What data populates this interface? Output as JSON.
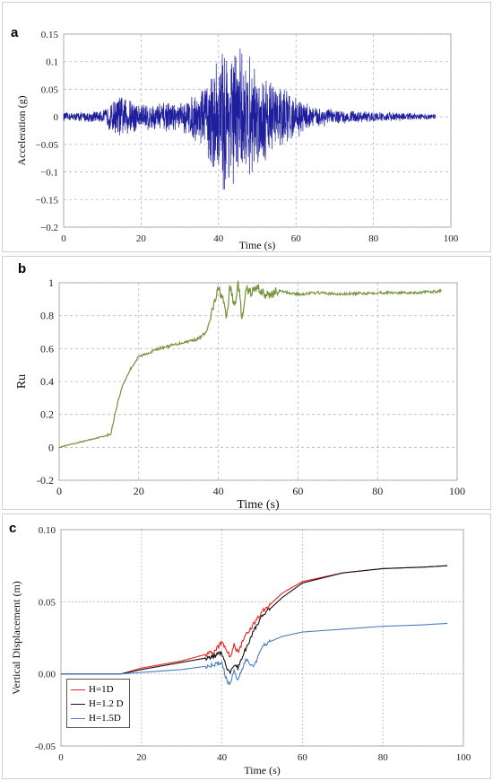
{
  "panels": {
    "a": {
      "letter": "a"
    },
    "b": {
      "letter": "b"
    },
    "c": {
      "letter": "c"
    }
  },
  "chart_data": [
    {
      "id": "a",
      "type": "line",
      "title": "",
      "xlabel": "Time (s)",
      "ylabel": "Acceleration (g)",
      "xlim": [
        0,
        100
      ],
      "ylim": [
        -0.2,
        0.15
      ],
      "xticks": [
        "0",
        "20",
        "40",
        "60",
        "80",
        "100"
      ],
      "yticks": [
        "0.15",
        "0.1",
        "0.05",
        "0",
        "−0.05",
        "−0.1",
        "−0.15",
        "−0.2"
      ],
      "ytick_values": [
        0.15,
        0.1,
        0.05,
        0,
        -0.05,
        -0.1,
        -0.15,
        -0.2
      ],
      "grid": true,
      "series": [
        {
          "color": "#1f1f9e",
          "duration": 96,
          "envelope": {
            "t": [
              0,
              10,
              14,
              20,
              30,
              36,
              40,
              42,
              45,
              50,
              55,
              60,
              65,
              70,
              80,
              90,
              96
            ],
            "amp": [
              0.008,
              0.012,
              0.045,
              0.03,
              0.028,
              0.06,
              0.13,
              0.16,
              0.14,
              0.1,
              0.07,
              0.04,
              0.022,
              0.014,
              0.01,
              0.008,
              0.005
            ]
          }
        }
      ]
    },
    {
      "id": "b",
      "type": "line",
      "title": "",
      "xlabel": "Time (s)",
      "ylabel": "Ru",
      "xlim": [
        0,
        100
      ],
      "ylim": [
        -0.2,
        1.0
      ],
      "xticks": [
        "0",
        "20",
        "40",
        "60",
        "80",
        "100"
      ],
      "yticks": [
        "1",
        "0.8",
        "0.6",
        "0.4",
        "0.2",
        "0",
        "-0.2"
      ],
      "ytick_values": [
        1,
        0.8,
        0.6,
        0.4,
        0.2,
        0,
        -0.2
      ],
      "grid": true,
      "series": [
        {
          "color": "#76923c",
          "x": [
            0,
            5,
            10,
            13,
            14,
            15,
            16,
            18,
            20,
            22,
            25,
            30,
            35,
            37,
            38,
            39,
            40,
            41,
            42,
            43,
            44,
            45,
            46,
            47,
            48,
            50,
            52,
            55,
            60,
            65,
            70,
            80,
            90,
            96
          ],
          "y": [
            0.0,
            0.03,
            0.06,
            0.08,
            0.2,
            0.3,
            0.38,
            0.48,
            0.55,
            0.57,
            0.6,
            0.63,
            0.66,
            0.7,
            0.78,
            0.88,
            0.96,
            0.92,
            0.78,
            0.98,
            0.85,
            1.0,
            0.77,
            0.96,
            0.94,
            0.97,
            0.92,
            0.95,
            0.93,
            0.94,
            0.93,
            0.94,
            0.94,
            0.95
          ]
        }
      ]
    },
    {
      "id": "c",
      "type": "line",
      "title": "",
      "xlabel": "Time (s)",
      "ylabel": "Vertical Displacement (m)",
      "xlim": [
        0,
        100
      ],
      "ylim": [
        -0.05,
        0.1
      ],
      "xticks": [
        "0",
        "20",
        "40",
        "60",
        "80",
        "100"
      ],
      "yticks": [
        "0.10",
        "0.05",
        "0.00",
        "-0.05"
      ],
      "ytick_values": [
        0.1,
        0.05,
        0.0,
        -0.05
      ],
      "grid": true,
      "legend": "bottom-left",
      "series": [
        {
          "name": "H=1D",
          "color": "#e8201e",
          "x": [
            0,
            15,
            20,
            30,
            38,
            40,
            41,
            42,
            43,
            44,
            46,
            48,
            50,
            55,
            60,
            70,
            80,
            90,
            96
          ],
          "y": [
            0.0,
            0.0,
            0.004,
            0.009,
            0.015,
            0.022,
            0.018,
            0.012,
            0.02,
            0.015,
            0.028,
            0.035,
            0.043,
            0.056,
            0.064,
            0.07,
            0.073,
            0.074,
            0.075
          ]
        },
        {
          "name": "H=1.2 D",
          "color": "#111111",
          "x": [
            0,
            15,
            20,
            30,
            38,
            40,
            41,
            42,
            43,
            44,
            46,
            48,
            50,
            55,
            60,
            70,
            80,
            90,
            96
          ],
          "y": [
            0.0,
            0.0,
            0.003,
            0.008,
            0.012,
            0.015,
            0.005,
            0.0,
            0.006,
            0.004,
            0.018,
            0.03,
            0.04,
            0.053,
            0.063,
            0.07,
            0.073,
            0.074,
            0.075
          ]
        },
        {
          "name": "H=1.5D",
          "color": "#4a7fc0",
          "x": [
            0,
            15,
            20,
            30,
            38,
            40,
            41,
            42,
            43,
            44,
            46,
            48,
            50,
            55,
            60,
            70,
            80,
            90,
            96
          ],
          "y": [
            0.0,
            0.0,
            0.001,
            0.003,
            0.006,
            0.008,
            -0.003,
            -0.008,
            0.002,
            -0.004,
            0.01,
            0.005,
            0.02,
            0.026,
            0.029,
            0.031,
            0.033,
            0.034,
            0.035
          ]
        }
      ]
    }
  ]
}
